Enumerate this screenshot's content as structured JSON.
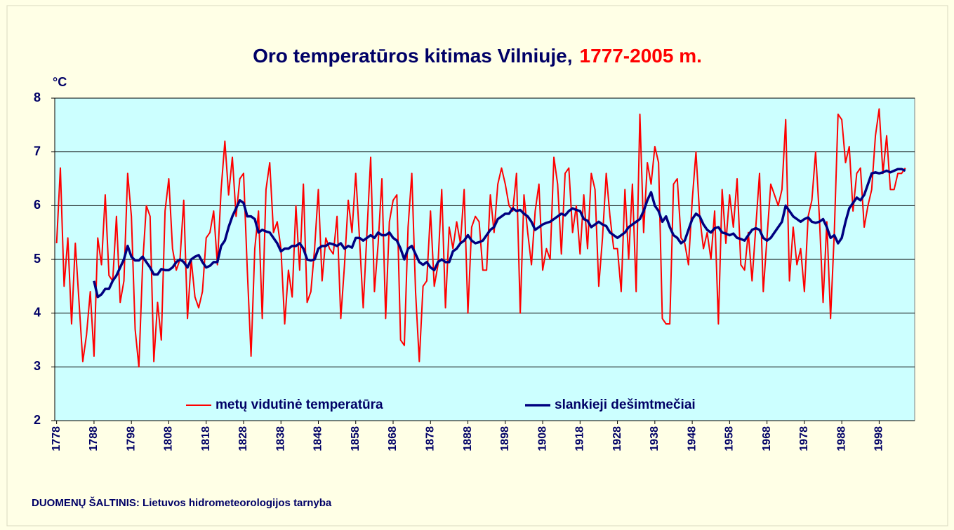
{
  "chart_data": {
    "type": "line",
    "title": "Oro temperatūros kitimas Vilniuje,",
    "title_highlight": "1777-2005 m.",
    "y_unit": "°C",
    "source": "DUOMENŲ ŠALTINIS: Lietuvos hidrometeorologijos tarnyba",
    "xlim": [
      1777.5,
      2007.5
    ],
    "xticks": [
      1778,
      1788,
      1798,
      1808,
      1818,
      1828,
      1838,
      1848,
      1858,
      1868,
      1878,
      1888,
      1898,
      1908,
      1918,
      1928,
      1938,
      1948,
      1958,
      1968,
      1978,
      1988,
      1998
    ],
    "ylim": [
      2,
      8
    ],
    "yticks": [
      2,
      3,
      4,
      5,
      6,
      7,
      8
    ],
    "grid": true,
    "legend": "bottom",
    "x": [
      1778,
      1779,
      1780,
      1781,
      1782,
      1783,
      1784,
      1785,
      1786,
      1787,
      1788,
      1789,
      1790,
      1791,
      1792,
      1793,
      1794,
      1795,
      1796,
      1797,
      1798,
      1799,
      1800,
      1801,
      1802,
      1803,
      1804,
      1805,
      1806,
      1807,
      1808,
      1809,
      1810,
      1811,
      1812,
      1813,
      1814,
      1815,
      1816,
      1817,
      1818,
      1819,
      1820,
      1821,
      1822,
      1823,
      1824,
      1825,
      1826,
      1827,
      1828,
      1829,
      1830,
      1831,
      1832,
      1833,
      1834,
      1835,
      1836,
      1837,
      1838,
      1839,
      1840,
      1841,
      1842,
      1843,
      1844,
      1845,
      1846,
      1847,
      1848,
      1849,
      1850,
      1851,
      1852,
      1853,
      1854,
      1855,
      1856,
      1857,
      1858,
      1859,
      1860,
      1861,
      1862,
      1863,
      1864,
      1865,
      1866,
      1867,
      1868,
      1869,
      1870,
      1871,
      1872,
      1873,
      1874,
      1875,
      1876,
      1877,
      1878,
      1879,
      1880,
      1881,
      1882,
      1883,
      1884,
      1885,
      1886,
      1887,
      1888,
      1889,
      1890,
      1891,
      1892,
      1893,
      1894,
      1895,
      1896,
      1897,
      1898,
      1899,
      1900,
      1901,
      1902,
      1903,
      1904,
      1905,
      1906,
      1907,
      1908,
      1909,
      1910,
      1911,
      1912,
      1913,
      1914,
      1915,
      1916,
      1917,
      1918,
      1919,
      1920,
      1921,
      1922,
      1923,
      1924,
      1925,
      1926,
      1927,
      1928,
      1929,
      1930,
      1931,
      1932,
      1933,
      1934,
      1935,
      1936,
      1937,
      1938,
      1939,
      1940,
      1941,
      1942,
      1943,
      1944,
      1945,
      1946,
      1947,
      1948,
      1949,
      1950,
      1951,
      1952,
      1953,
      1954,
      1955,
      1956,
      1957,
      1958,
      1959,
      1960,
      1961,
      1962,
      1963,
      1964,
      1965,
      1966,
      1967,
      1968,
      1969,
      1970,
      1971,
      1972,
      1973,
      1974,
      1975,
      1976,
      1977,
      1978,
      1979,
      1980,
      1981,
      1982,
      1983,
      1984,
      1985,
      1986,
      1987,
      1988,
      1989,
      1990,
      1991,
      1992,
      1993,
      1994,
      1995,
      1996,
      1997,
      1998,
      1999,
      2000,
      2001,
      2002,
      2003,
      2004,
      2005
    ],
    "series": [
      {
        "name": "metų vidutinė temperatūra",
        "color": "#ff0000",
        "width": 2,
        "values": [
          5.3,
          6.7,
          4.5,
          5.4,
          3.8,
          5.3,
          4.2,
          3.1,
          3.6,
          4.4,
          3.2,
          5.4,
          4.9,
          6.2,
          4.7,
          4.6,
          5.8,
          4.2,
          4.6,
          6.6,
          5.8,
          3.7,
          3.0,
          4.9,
          6.0,
          5.8,
          3.1,
          4.2,
          3.5,
          5.9,
          6.5,
          5.2,
          4.8,
          5.0,
          6.1,
          3.9,
          5.0,
          4.3,
          4.1,
          4.4,
          5.4,
          5.5,
          5.9,
          4.9,
          6.3,
          7.2,
          6.2,
          6.9,
          5.8,
          6.5,
          6.6,
          4.8,
          3.2,
          5.2,
          5.9,
          3.9,
          6.3,
          6.8,
          5.5,
          5.7,
          5.2,
          3.8,
          4.8,
          4.3,
          6.0,
          4.8,
          6.4,
          4.2,
          4.4,
          5.2,
          6.3,
          4.6,
          5.4,
          5.2,
          5.1,
          5.8,
          3.9,
          4.9,
          6.1,
          5.5,
          6.6,
          5.4,
          4.1,
          5.5,
          6.9,
          4.4,
          5.3,
          6.5,
          3.9,
          5.7,
          6.1,
          6.2,
          3.5,
          3.4,
          5.6,
          6.6,
          4.4,
          3.1,
          4.5,
          4.6,
          5.9,
          4.5,
          4.9,
          6.3,
          4.1,
          5.6,
          5.2,
          5.7,
          5.3,
          6.3,
          4.0,
          5.6,
          5.8,
          5.7,
          4.8,
          4.8,
          6.2,
          5.5,
          6.4,
          6.7,
          6.4,
          6.0,
          5.9,
          6.6,
          4.0,
          6.2,
          5.5,
          4.9,
          5.9,
          6.4,
          4.8,
          5.2,
          5.0,
          6.9,
          6.4,
          5.1,
          6.6,
          6.7,
          5.5,
          6.0,
          5.1,
          6.2,
          5.2,
          6.6,
          6.3,
          4.5,
          5.4,
          6.6,
          5.8,
          5.2,
          5.2,
          4.4,
          6.3,
          5.0,
          6.4,
          4.4,
          7.7,
          5.5,
          6.8,
          6.4,
          7.1,
          6.8,
          3.9,
          3.8,
          3.8,
          6.4,
          6.5,
          5.4,
          5.3,
          4.9,
          6.1,
          7.0,
          5.8,
          5.2,
          5.5,
          5.0,
          5.9,
          3.8,
          6.3,
          5.3,
          6.2,
          5.6,
          6.5,
          4.9,
          4.8,
          5.5,
          4.6,
          5.6,
          6.6,
          4.4,
          5.4,
          6.4,
          6.2,
          6.0,
          6.3,
          7.6,
          4.6,
          5.6,
          4.9,
          5.2,
          4.4,
          5.8,
          6.1,
          7.0,
          5.8,
          4.2,
          5.7,
          3.9,
          5.5,
          7.7,
          7.6,
          6.8,
          7.1,
          5.9,
          6.6,
          6.7,
          5.6,
          6.0,
          6.3,
          7.3,
          7.8,
          6.6,
          7.3,
          6.3,
          6.3,
          6.6,
          6.6,
          6.7
        ]
      },
      {
        "name": "slankieji dešimtmečiai",
        "color": "#000080",
        "width": 3.5,
        "values": [
          null,
          null,
          null,
          null,
          null,
          null,
          null,
          null,
          null,
          null,
          4.6,
          4.3,
          4.35,
          4.45,
          4.45,
          4.6,
          4.7,
          4.85,
          5.0,
          5.25,
          5.05,
          4.98,
          4.98,
          5.05,
          4.95,
          4.85,
          4.72,
          4.72,
          4.82,
          4.8,
          4.8,
          4.85,
          4.95,
          5.0,
          4.95,
          4.85,
          5.0,
          5.05,
          5.08,
          4.95,
          4.85,
          4.88,
          4.95,
          4.95,
          5.25,
          5.35,
          5.6,
          5.8,
          5.95,
          6.1,
          6.05,
          5.8,
          5.8,
          5.75,
          5.5,
          5.55,
          5.52,
          5.5,
          5.4,
          5.3,
          5.15,
          5.2,
          5.2,
          5.25,
          5.25,
          5.3,
          5.2,
          5.0,
          4.98,
          5.0,
          5.2,
          5.25,
          5.25,
          5.3,
          5.28,
          5.25,
          5.3,
          5.2,
          5.25,
          5.22,
          5.4,
          5.4,
          5.35,
          5.4,
          5.45,
          5.4,
          5.5,
          5.45,
          5.45,
          5.5,
          5.4,
          5.35,
          5.2,
          5.0,
          5.2,
          5.25,
          5.1,
          4.95,
          4.9,
          4.95,
          4.85,
          4.8,
          4.95,
          5.0,
          4.95,
          4.95,
          5.15,
          5.2,
          5.3,
          5.35,
          5.45,
          5.35,
          5.3,
          5.32,
          5.35,
          5.45,
          5.55,
          5.6,
          5.75,
          5.8,
          5.85,
          5.85,
          5.95,
          5.9,
          5.92,
          5.85,
          5.8,
          5.7,
          5.55,
          5.6,
          5.65,
          5.68,
          5.7,
          5.75,
          5.8,
          5.85,
          5.82,
          5.9,
          5.95,
          5.92,
          5.9,
          5.75,
          5.72,
          5.6,
          5.65,
          5.7,
          5.65,
          5.62,
          5.5,
          5.45,
          5.4,
          5.45,
          5.5,
          5.6,
          5.65,
          5.7,
          5.75,
          5.9,
          6.1,
          6.25,
          6.0,
          5.9,
          5.7,
          5.8,
          5.6,
          5.45,
          5.4,
          5.3,
          5.35,
          5.55,
          5.75,
          5.85,
          5.8,
          5.65,
          5.55,
          5.5,
          5.58,
          5.6,
          5.5,
          5.48,
          5.45,
          5.48,
          5.4,
          5.38,
          5.35,
          5.45,
          5.55,
          5.58,
          5.55,
          5.4,
          5.35,
          5.4,
          5.5,
          5.6,
          5.7,
          6.0,
          5.9,
          5.8,
          5.75,
          5.7,
          5.75,
          5.78,
          5.7,
          5.68,
          5.7,
          5.75,
          5.6,
          5.4,
          5.45,
          5.3,
          5.4,
          5.7,
          5.95,
          6.05,
          6.15,
          6.1,
          6.2,
          6.4,
          6.6,
          6.62,
          6.6,
          6.62,
          6.65,
          6.62,
          6.65,
          6.68,
          6.68,
          6.65
        ]
      }
    ]
  }
}
